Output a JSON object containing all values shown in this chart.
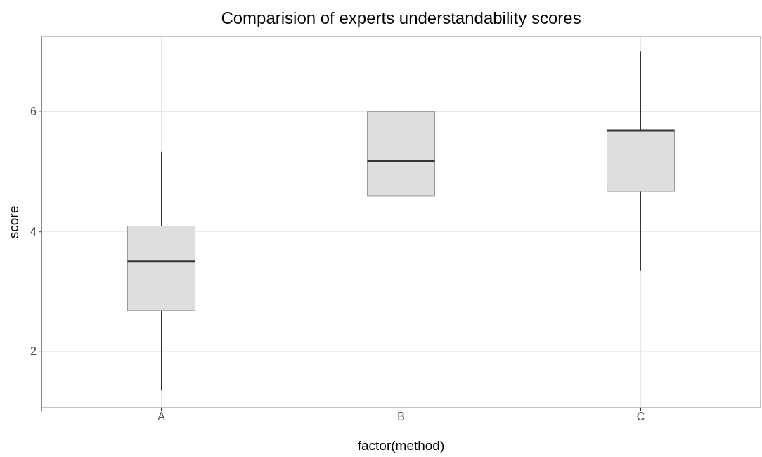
{
  "chart_data": {
    "type": "box",
    "title": "Comparision of experts understandability scores",
    "xlabel": "factor(method)",
    "ylabel": "score",
    "categories": [
      "A",
      "B",
      "C"
    ],
    "boxes": [
      {
        "low": 1.35,
        "q1": 2.68,
        "median": 3.5,
        "q3": 4.09,
        "high": 5.33
      },
      {
        "low": 2.69,
        "q1": 4.59,
        "median": 5.18,
        "q3": 6.0,
        "high": 7.0
      },
      {
        "low": 3.35,
        "q1": 4.67,
        "median": 5.68,
        "q3": 5.68,
        "high": 7.0
      }
    ],
    "color": "#dedede",
    "ylim": [
      1.06,
      7.25
    ],
    "yticks": [
      2,
      4,
      6
    ],
    "grid": true
  }
}
